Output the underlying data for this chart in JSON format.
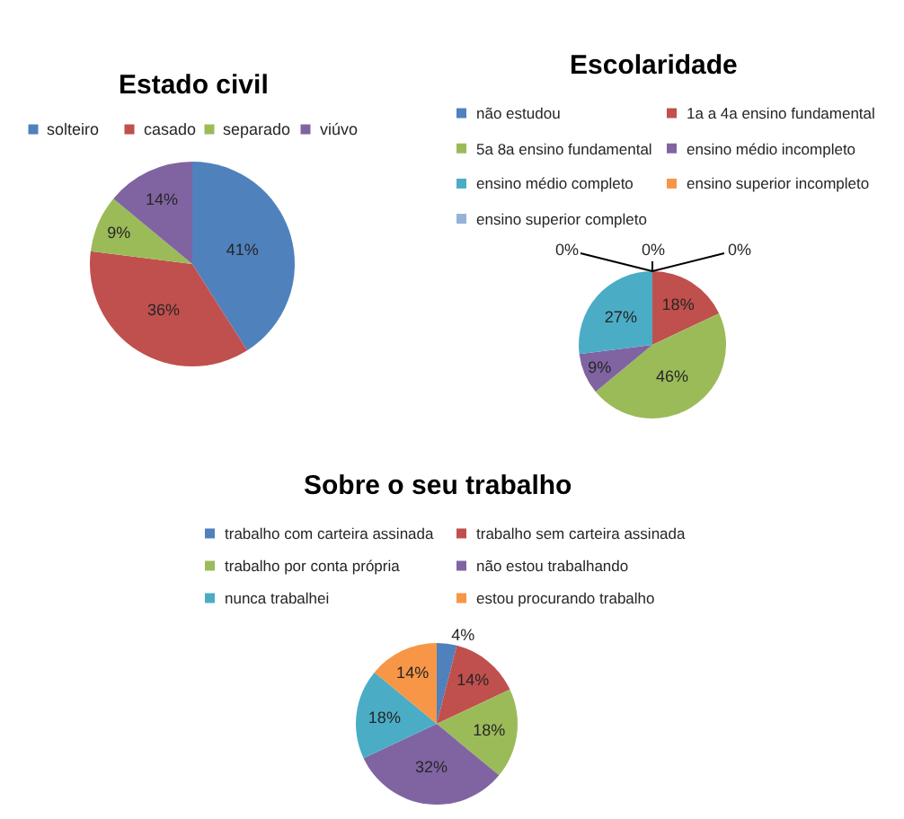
{
  "chart_data": [
    {
      "type": "pie",
      "title": "Estado civil",
      "categories": [
        "solteiro",
        "casado",
        "separado",
        "viúvo"
      ],
      "values": [
        41,
        36,
        9,
        14
      ],
      "value_labels": [
        "41%",
        "36%",
        "9%",
        "14%"
      ],
      "colors": [
        "#4f81bd",
        "#c0504d",
        "#9bbb59",
        "#8064a2"
      ],
      "legend": "top"
    },
    {
      "type": "pie",
      "title": "Escolaridade",
      "categories": [
        "não estudou",
        "1a a 4a ensino fundamental",
        "5a 8a ensino fundamental",
        "ensino médio incompleto",
        "ensino médio completo",
        "ensino superior incompleto",
        "ensino superior completo"
      ],
      "values": [
        0,
        18,
        46,
        9,
        27,
        0,
        0
      ],
      "value_labels": [
        "0%",
        "18%",
        "46%",
        "9%",
        "27%",
        "0%",
        "0%"
      ],
      "colors": [
        "#4f81bd",
        "#c0504d",
        "#9bbb59",
        "#8064a2",
        "#4bacc6",
        "#f79646",
        "#95b3d7"
      ],
      "legend": "top"
    },
    {
      "type": "pie",
      "title": "Sobre o seu trabalho",
      "categories": [
        "trabalho com carteira assinada",
        "trabalho sem carteira assinada",
        "trabalho por conta própria",
        "não estou trabalhando",
        "nunca trabalhei",
        "estou procurando trabalho"
      ],
      "values": [
        4,
        14,
        18,
        32,
        18,
        14
      ],
      "value_labels": [
        "4%",
        "14%",
        "18%",
        "32%",
        "18%",
        "14%"
      ],
      "colors": [
        "#4f81bd",
        "#c0504d",
        "#9bbb59",
        "#8064a2",
        "#4bacc6",
        "#f79646"
      ],
      "legend": "top"
    }
  ]
}
